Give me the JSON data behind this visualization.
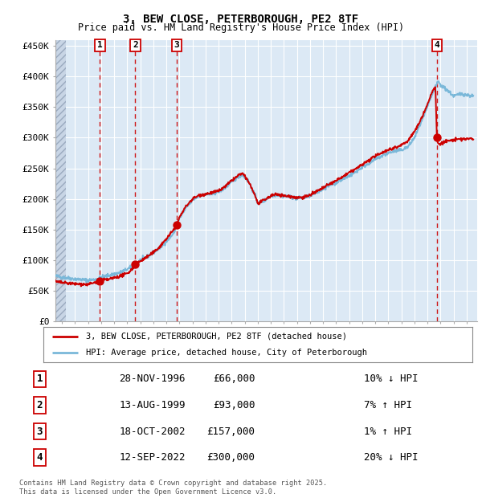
{
  "title": "3, BEW CLOSE, PETERBOROUGH, PE2 8TF",
  "subtitle": "Price paid vs. HM Land Registry's House Price Index (HPI)",
  "ylabel_ticks": [
    "£0",
    "£50K",
    "£100K",
    "£150K",
    "£200K",
    "£250K",
    "£300K",
    "£350K",
    "£400K",
    "£450K"
  ],
  "ytick_vals": [
    0,
    50000,
    100000,
    150000,
    200000,
    250000,
    300000,
    350000,
    400000,
    450000
  ],
  "ylim": [
    0,
    460000
  ],
  "xlim_start": 1993.5,
  "xlim_end": 2025.8,
  "sale_dates": [
    1996.91,
    1999.62,
    2002.8,
    2022.71
  ],
  "sale_prices": [
    66000,
    93000,
    157000,
    300000
  ],
  "sale_labels": [
    "1",
    "2",
    "3",
    "4"
  ],
  "hpi_color": "#7ab8d9",
  "price_color": "#cc0000",
  "vline_color": "#cc0000",
  "background_color": "#dce9f5",
  "grid_color": "#ffffff",
  "legend_label_price": "3, BEW CLOSE, PETERBOROUGH, PE2 8TF (detached house)",
  "legend_label_hpi": "HPI: Average price, detached house, City of Peterborough",
  "table_data": [
    [
      "1",
      "28-NOV-1996",
      "£66,000",
      "10% ↓ HPI"
    ],
    [
      "2",
      "13-AUG-1999",
      "£93,000",
      "7% ↑ HPI"
    ],
    [
      "3",
      "18-OCT-2002",
      "£157,000",
      "1% ↑ HPI"
    ],
    [
      "4",
      "12-SEP-2022",
      "£300,000",
      "20% ↓ HPI"
    ]
  ],
  "footer": "Contains HM Land Registry data © Crown copyright and database right 2025.\nThis data is licensed under the Open Government Licence v3.0."
}
